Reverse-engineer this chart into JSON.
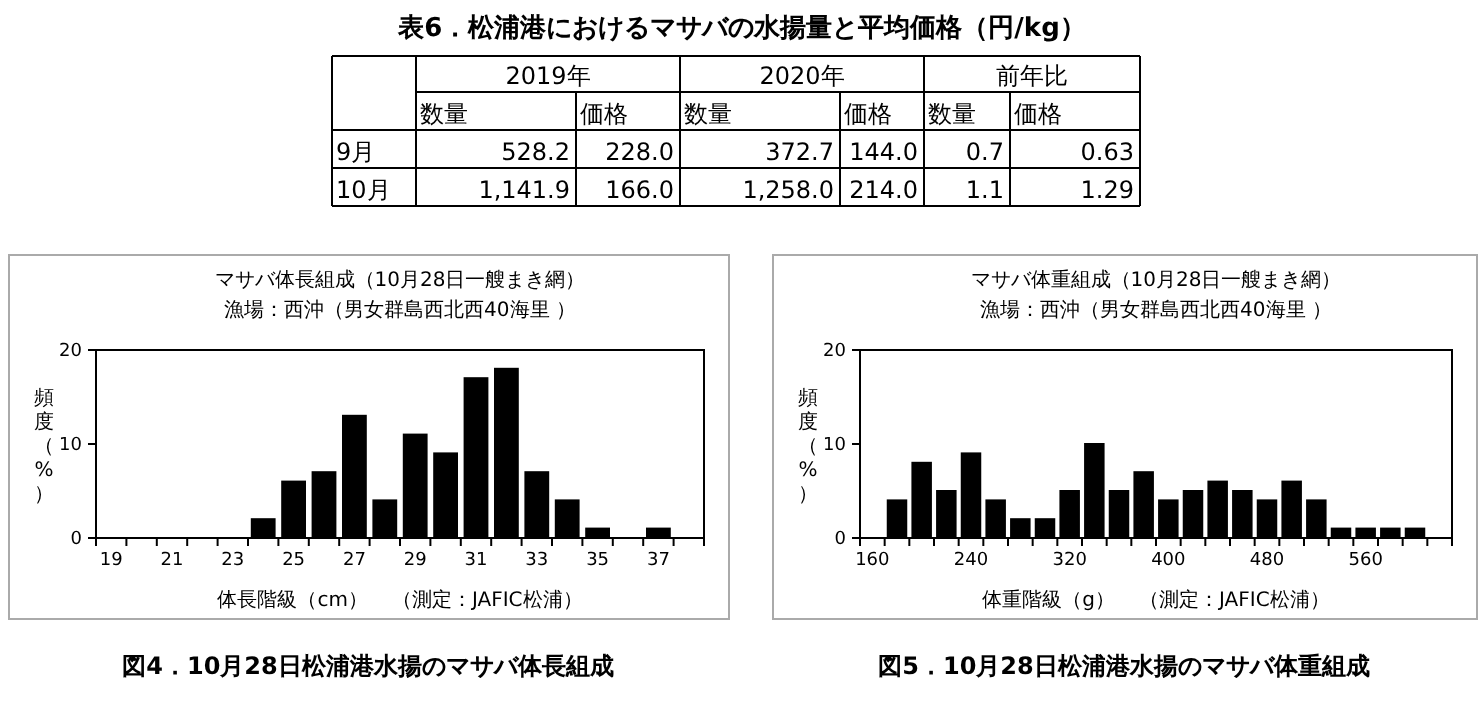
{
  "chart_data": [
    {
      "type": "other",
      "title": "表6．松浦港におけるマサバの水揚量と平均価格（円/kg）",
      "annotations": [
        "2019年",
        "2020年",
        "前年比",
        "数量",
        "価格",
        "数量",
        "価格",
        "数量",
        "価格",
        "9月",
        "528.2",
        "228.0",
        "372.7",
        "144.0",
        "0.7",
        "0.63",
        "10月",
        "1,141.9",
        "166.0",
        "1,258.0",
        "214.0",
        "1.1",
        "1.29"
      ]
    },
    {
      "type": "bar",
      "title": "マサバ体長組成（10月28日一艘まき網）",
      "subtitle": "漁場：西沖（男女群島西北西40海里 ）",
      "xlabel": "体長階級（cm）",
      "ylabel": "頻度（%）",
      "categories": [
        "19",
        null,
        "21",
        null,
        "23",
        null,
        "25",
        null,
        "27",
        null,
        "29",
        null,
        "31",
        null,
        "33",
        null,
        "35",
        null,
        "37",
        null
      ],
      "values": [
        0,
        0,
        0,
        0,
        0,
        2,
        6,
        7,
        13,
        4,
        11,
        9,
        17,
        18,
        7,
        4,
        1,
        0,
        1,
        0
      ],
      "color": "#000000",
      "ylim": [
        0,
        20
      ],
      "yticks": [
        0,
        10,
        20
      ],
      "grid": false,
      "annotations": [
        "（測定：JAFIC松浦）",
        "図4．10月28日松浦港水揚のマサバ体長組成"
      ]
    },
    {
      "type": "bar",
      "title": "マサバ体重組成（10月28日一艘まき網）",
      "subtitle": "漁場：西沖（男女群島西北西40海里 ）",
      "xlabel": "体重階級（g）",
      "ylabel": "頻度（%）",
      "categories": [
        "160",
        null,
        null,
        null,
        "240",
        null,
        null,
        null,
        "320",
        null,
        null,
        null,
        "400",
        null,
        null,
        null,
        "480",
        null,
        null,
        null,
        "560",
        null,
        null,
        null
      ],
      "values": [
        0,
        4,
        8,
        5,
        9,
        4,
        2,
        2,
        5,
        10,
        5,
        7,
        4,
        5,
        6,
        5,
        4,
        6,
        4,
        1,
        1,
        1,
        1,
        0
      ],
      "color": "#000000",
      "ylim": [
        0,
        20
      ],
      "yticks": [
        0,
        10,
        20
      ],
      "grid": false,
      "annotations": [
        "（測定：JAFIC松浦）",
        "図5．10月28日松浦港水揚のマサバ体重組成"
      ]
    }
  ]
}
